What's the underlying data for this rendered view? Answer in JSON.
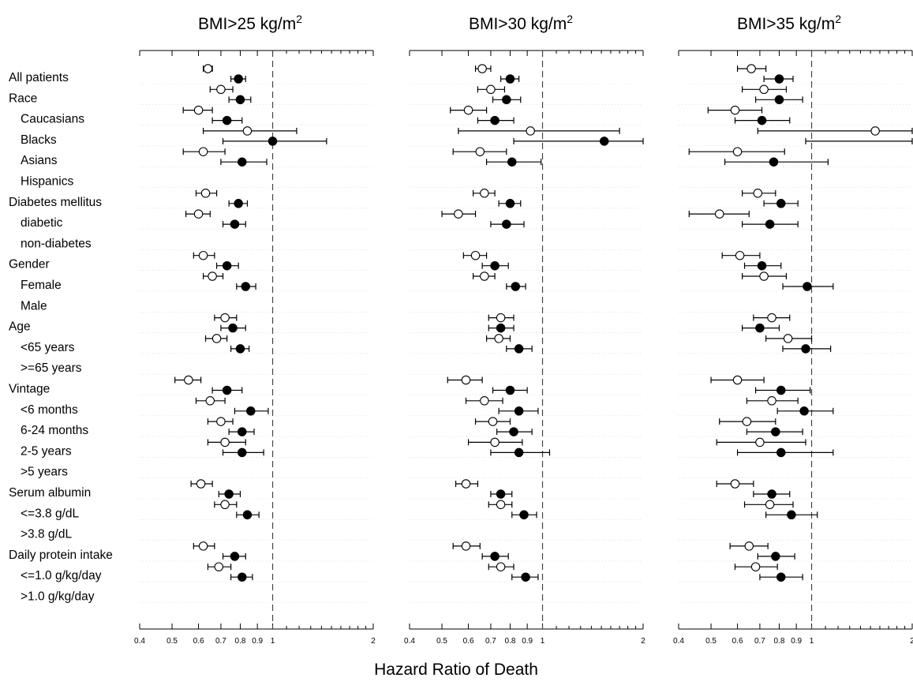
{
  "chart_data": {
    "type": "forest",
    "xlabel": "Hazard Ratio of Death",
    "x_scale": "log",
    "xlim": [
      0.4,
      2
    ],
    "reference_line": 1,
    "marker_legend": {
      "open_circle": "one estimate (upper marker)",
      "filled_circle": "other estimate (lower marker)"
    },
    "rows": [
      {
        "label": "All patients",
        "indent": false
      },
      {
        "label": "Race",
        "indent": false
      },
      {
        "label": "Caucasians",
        "indent": true
      },
      {
        "label": "Blacks",
        "indent": true
      },
      {
        "label": "Asians",
        "indent": true
      },
      {
        "label": "Hispanics",
        "indent": true
      },
      {
        "label": "Diabetes mellitus",
        "indent": false
      },
      {
        "label": "diabetic",
        "indent": true
      },
      {
        "label": "non-diabetes",
        "indent": true
      },
      {
        "label": "Gender",
        "indent": false
      },
      {
        "label": "Female",
        "indent": true
      },
      {
        "label": "Male",
        "indent": true
      },
      {
        "label": "Age",
        "indent": false
      },
      {
        "label": "<65 years",
        "indent": true
      },
      {
        "label": ">=65 years",
        "indent": true
      },
      {
        "label": "Vintage",
        "indent": false
      },
      {
        "label": "<6 months",
        "indent": true
      },
      {
        "label": "6-24 months",
        "indent": true
      },
      {
        "label": "2-5 years",
        "indent": true
      },
      {
        "label": ">5 years",
        "indent": true
      },
      {
        "label": "Serum albumin",
        "indent": false
      },
      {
        "label": "<=3.8 g/dL",
        "indent": true
      },
      {
        "label": ">3.8 g/dL",
        "indent": true
      },
      {
        "label": "Daily protein intake",
        "indent": false
      },
      {
        "label": "<=1.0 g/kg/day",
        "indent": true
      },
      {
        "label": ">1.0 g/kg/day",
        "indent": true
      }
    ],
    "panels": [
      {
        "title_main": "BMI>25 kg/m",
        "title_sup": "2",
        "ticks": [
          "0.4",
          "0.5",
          "0.6",
          "0.7",
          "0.8",
          "0.9",
          "1",
          "2"
        ],
        "tick_values": [
          0.4,
          0.5,
          0.6,
          0.7,
          0.8,
          0.9,
          1,
          2
        ],
        "estimates": [
          {
            "row": "All patients",
            "open": [
              0.64,
              0.62,
              0.66
            ],
            "filled": [
              0.79,
              0.75,
              0.83
            ]
          },
          {
            "row": "Race",
            "open": [
              0.7,
              0.65,
              0.76
            ],
            "filled": [
              0.8,
              0.74,
              0.86
            ]
          },
          {
            "row": "Caucasians",
            "open": [
              0.6,
              0.54,
              0.66
            ],
            "filled": [
              0.73,
              0.66,
              0.81
            ]
          },
          {
            "row": "Blacks",
            "open": [
              0.84,
              0.62,
              1.18
            ],
            "filled": [
              1.0,
              0.71,
              1.45
            ]
          },
          {
            "row": "Asians",
            "open": [
              0.62,
              0.54,
              0.72
            ],
            "filled": [
              0.81,
              0.7,
              0.96
            ]
          },
          {
            "row": "Diabetes mellitus",
            "open": [
              0.63,
              0.59,
              0.68
            ],
            "filled": [
              0.79,
              0.74,
              0.84
            ]
          },
          {
            "row": "diabetic",
            "open": [
              0.6,
              0.55,
              0.65
            ],
            "filled": [
              0.77,
              0.71,
              0.83
            ]
          },
          {
            "row": "Gender",
            "open": [
              0.62,
              0.58,
              0.67
            ],
            "filled": [
              0.73,
              0.68,
              0.79
            ]
          },
          {
            "row": "Female",
            "open": [
              0.66,
              0.62,
              0.71
            ],
            "filled": [
              0.83,
              0.78,
              0.89
            ]
          },
          {
            "row": "Age",
            "open": [
              0.72,
              0.67,
              0.78
            ],
            "filled": [
              0.76,
              0.7,
              0.83
            ]
          },
          {
            "row": "<65 years",
            "open": [
              0.68,
              0.63,
              0.73
            ],
            "filled": [
              0.8,
              0.75,
              0.85
            ]
          },
          {
            "row": "Vintage",
            "open": [
              0.56,
              0.51,
              0.61
            ],
            "filled": [
              0.73,
              0.66,
              0.81
            ]
          },
          {
            "row": "<6 months",
            "open": [
              0.65,
              0.59,
              0.72
            ],
            "filled": [
              0.86,
              0.77,
              0.97
            ]
          },
          {
            "row": "6-24 months",
            "open": [
              0.7,
              0.64,
              0.76
            ],
            "filled": [
              0.81,
              0.74,
              0.88
            ]
          },
          {
            "row": "2-5 years",
            "open": [
              0.72,
              0.64,
              0.83
            ],
            "filled": [
              0.81,
              0.71,
              0.94
            ]
          },
          {
            "row": "Serum albumin",
            "open": [
              0.61,
              0.57,
              0.66
            ],
            "filled": [
              0.74,
              0.69,
              0.8
            ]
          },
          {
            "row": "<=3.8 g/dL",
            "open": [
              0.72,
              0.67,
              0.78
            ],
            "filled": [
              0.84,
              0.78,
              0.91
            ]
          },
          {
            "row": "Daily protein intake",
            "open": [
              0.62,
              0.58,
              0.67
            ],
            "filled": [
              0.77,
              0.71,
              0.83
            ]
          },
          {
            "row": "<=1.0 g/kg/day",
            "open": [
              0.69,
              0.64,
              0.75
            ],
            "filled": [
              0.81,
              0.75,
              0.87
            ]
          }
        ]
      },
      {
        "title_main": "BMI>30 kg/m",
        "title_sup": "2",
        "ticks": [
          "0.4",
          "0.5",
          "0.6",
          "0.7",
          "0.8",
          "0.9",
          "1",
          "2"
        ],
        "tick_values": [
          0.4,
          0.5,
          0.6,
          0.7,
          0.8,
          0.9,
          1,
          2
        ],
        "estimates": [
          {
            "row": "All patients",
            "open": [
              0.66,
              0.63,
              0.7
            ],
            "filled": [
              0.8,
              0.75,
              0.85
            ]
          },
          {
            "row": "Race",
            "open": [
              0.7,
              0.64,
              0.77
            ],
            "filled": [
              0.78,
              0.71,
              0.86
            ]
          },
          {
            "row": "Caucasians",
            "open": [
              0.6,
              0.53,
              0.68
            ],
            "filled": [
              0.72,
              0.64,
              0.82
            ]
          },
          {
            "row": "Blacks",
            "open": [
              0.92,
              0.56,
              1.7
            ],
            "filled": [
              1.53,
              0.82,
              2.0
            ]
          },
          {
            "row": "Asians",
            "open": [
              0.65,
              0.54,
              0.78
            ],
            "filled": [
              0.81,
              0.68,
              0.99
            ]
          },
          {
            "row": "Diabetes mellitus",
            "open": [
              0.67,
              0.62,
              0.72
            ],
            "filled": [
              0.8,
              0.74,
              0.86
            ]
          },
          {
            "row": "diabetic",
            "open": [
              0.56,
              0.5,
              0.63
            ],
            "filled": [
              0.78,
              0.7,
              0.88
            ]
          },
          {
            "row": "Gender",
            "open": [
              0.63,
              0.58,
              0.68
            ],
            "filled": [
              0.72,
              0.66,
              0.79
            ]
          },
          {
            "row": "Female",
            "open": [
              0.67,
              0.62,
              0.72
            ],
            "filled": [
              0.83,
              0.78,
              0.89
            ]
          },
          {
            "row": "Age",
            "open": [
              0.75,
              0.69,
              0.82
            ],
            "filled": [
              0.75,
              0.69,
              0.82
            ]
          },
          {
            "row": "<65 years",
            "open": [
              0.74,
              0.68,
              0.8
            ],
            "filled": [
              0.85,
              0.78,
              0.93
            ]
          },
          {
            "row": "Vintage",
            "open": [
              0.59,
              0.52,
              0.66
            ],
            "filled": [
              0.8,
              0.71,
              0.9
            ]
          },
          {
            "row": "<6 months",
            "open": [
              0.67,
              0.59,
              0.76
            ],
            "filled": [
              0.85,
              0.74,
              0.97
            ]
          },
          {
            "row": "6-24 months",
            "open": [
              0.71,
              0.63,
              0.8
            ],
            "filled": [
              0.82,
              0.73,
              0.93
            ]
          },
          {
            "row": "2-5 years",
            "open": [
              0.72,
              0.6,
              0.87
            ],
            "filled": [
              0.85,
              0.7,
              1.05
            ]
          },
          {
            "row": "Serum albumin",
            "open": [
              0.59,
              0.55,
              0.64
            ],
            "filled": [
              0.75,
              0.7,
              0.81
            ]
          },
          {
            "row": "<=3.8 g/dL",
            "open": [
              0.75,
              0.69,
              0.81
            ],
            "filled": [
              0.88,
              0.81,
              0.96
            ]
          },
          {
            "row": "Daily protein intake",
            "open": [
              0.59,
              0.54,
              0.65
            ],
            "filled": [
              0.72,
              0.66,
              0.79
            ]
          },
          {
            "row": "<=1.0 g/kg/day",
            "open": [
              0.75,
              0.69,
              0.82
            ],
            "filled": [
              0.89,
              0.81,
              0.97
            ]
          }
        ]
      },
      {
        "title_main": "BMI>35 kg/m",
        "title_sup": "2",
        "ticks": [
          "0.4",
          "0.5",
          "0.6",
          "0.7",
          "0.8",
          "0.9",
          "1",
          "2"
        ],
        "tick_values": [
          0.4,
          0.5,
          0.6,
          0.7,
          0.8,
          0.9,
          1,
          2
        ],
        "estimates": [
          {
            "row": "All patients",
            "open": [
              0.66,
              0.6,
              0.73
            ],
            "filled": [
              0.8,
              0.72,
              0.88
            ]
          },
          {
            "row": "Race",
            "open": [
              0.72,
              0.62,
              0.84
            ],
            "filled": [
              0.8,
              0.68,
              0.94
            ]
          },
          {
            "row": "Caucasians",
            "open": [
              0.59,
              0.49,
              0.71
            ],
            "filled": [
              0.71,
              0.59,
              0.86
            ]
          },
          {
            "row": "Blacks",
            "open": [
              1.55,
              0.69,
              2.0
            ],
            "filled": [
              null,
              0.96,
              2.0
            ]
          },
          {
            "row": "Asians",
            "open": [
              0.6,
              0.43,
              0.83
            ],
            "filled": [
              0.77,
              0.55,
              1.12
            ]
          },
          {
            "row": "Diabetes mellitus",
            "open": [
              0.69,
              0.62,
              0.78
            ],
            "filled": [
              0.81,
              0.72,
              0.91
            ]
          },
          {
            "row": "diabetic",
            "open": [
              0.53,
              0.43,
              0.65
            ],
            "filled": [
              0.75,
              0.62,
              0.91
            ]
          },
          {
            "row": "Gender",
            "open": [
              0.61,
              0.54,
              0.7
            ],
            "filled": [
              0.71,
              0.63,
              0.81
            ]
          },
          {
            "row": "Female",
            "open": [
              0.72,
              0.62,
              0.84
            ],
            "filled": [
              0.97,
              0.82,
              1.16
            ]
          },
          {
            "row": "Age",
            "open": [
              0.76,
              0.67,
              0.86
            ],
            "filled": [
              0.7,
              0.62,
              0.8
            ]
          },
          {
            "row": "<65 years",
            "open": [
              0.85,
              0.73,
              1.0
            ],
            "filled": [
              0.96,
              0.82,
              1.14
            ]
          },
          {
            "row": "Vintage",
            "open": [
              0.6,
              0.5,
              0.72
            ],
            "filled": [
              0.81,
              0.68,
              0.99
            ]
          },
          {
            "row": "<6 months",
            "open": [
              0.76,
              0.64,
              0.91
            ],
            "filled": [
              0.95,
              0.79,
              1.16
            ]
          },
          {
            "row": "6-24 months",
            "open": [
              0.64,
              0.53,
              0.78
            ],
            "filled": [
              0.78,
              0.64,
              0.94
            ]
          },
          {
            "row": "2-5 years",
            "open": [
              0.7,
              0.52,
              0.96
            ],
            "filled": [
              0.81,
              0.6,
              1.16
            ]
          },
          {
            "row": "Serum albumin",
            "open": [
              0.59,
              0.52,
              0.67
            ],
            "filled": [
              0.76,
              0.67,
              0.86
            ]
          },
          {
            "row": "<=3.8 g/dL",
            "open": [
              0.75,
              0.63,
              0.88
            ],
            "filled": [
              0.87,
              0.73,
              1.04
            ]
          },
          {
            "row": "Daily protein intake",
            "open": [
              0.65,
              0.57,
              0.74
            ],
            "filled": [
              0.78,
              0.69,
              0.89
            ]
          },
          {
            "row": "<=1.0 g/kg/day",
            "open": [
              0.68,
              0.59,
              0.79
            ],
            "filled": [
              0.81,
              0.7,
              0.94
            ]
          }
        ]
      }
    ]
  }
}
